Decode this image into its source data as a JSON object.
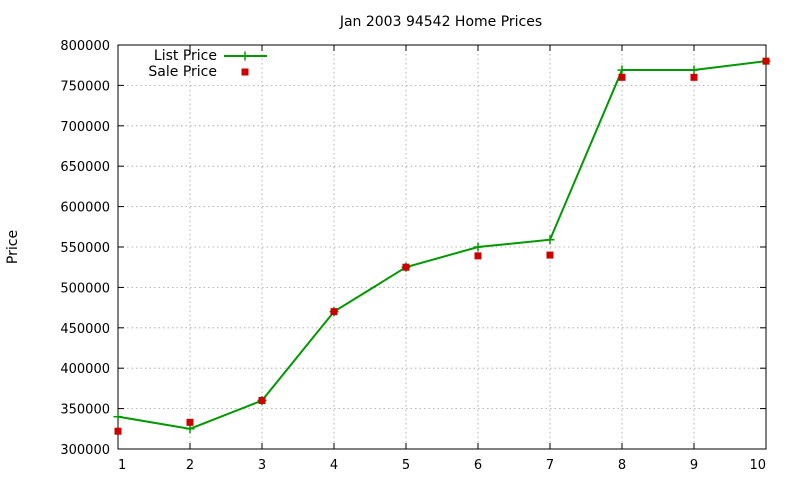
{
  "chart_data": {
    "type": "line",
    "title": "Jan 2003 94542 Home Prices",
    "xlabel": "",
    "ylabel": "Price",
    "xlim": [
      1,
      10
    ],
    "ylim": [
      300000,
      800000
    ],
    "x_ticks": [
      1,
      2,
      3,
      4,
      5,
      6,
      7,
      8,
      9,
      10
    ],
    "y_ticks": [
      300000,
      350000,
      400000,
      450000,
      500000,
      550000,
      600000,
      650000,
      700000,
      750000,
      800000
    ],
    "grid": true,
    "legend_position": "top-left",
    "series": [
      {
        "name": "List Price",
        "style": "line+cross",
        "color": "#009900",
        "x": [
          1,
          2,
          3,
          4,
          5,
          6,
          7,
          8,
          9,
          10
        ],
        "values": [
          340000,
          325000,
          360000,
          470000,
          525000,
          550000,
          559000,
          769000,
          769000,
          780000
        ]
      },
      {
        "name": "Sale Price",
        "style": "square",
        "color": "#cc0000",
        "x": [
          1,
          2,
          3,
          4,
          5,
          6,
          7,
          8,
          9,
          10
        ],
        "values": [
          322000,
          333000,
          360000,
          470000,
          525000,
          539000,
          540000,
          760000,
          760000,
          780000
        ]
      }
    ]
  }
}
